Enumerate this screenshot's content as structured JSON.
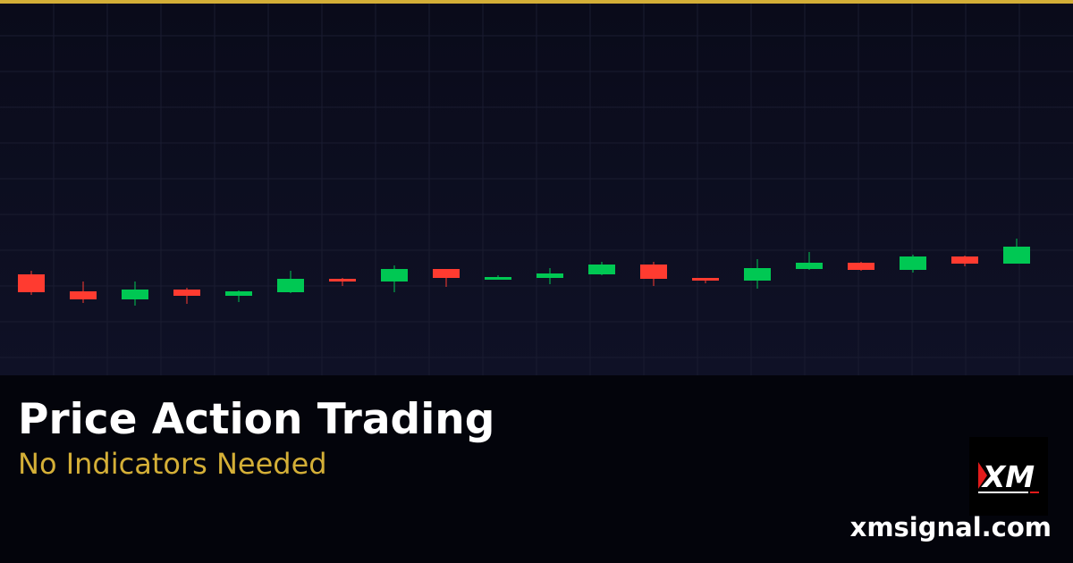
{
  "colors": {
    "accent": "#d4af37",
    "up": "#00c853",
    "down": "#ff3b30",
    "subtitle": "#d4af37"
  },
  "title": "Price Action Trading",
  "subtitle": "No Indicators Needed",
  "site": "xmsignal.com",
  "logo": {
    "text": "XM",
    "icon": "xm-logo"
  },
  "chart_data": {
    "type": "candlestick",
    "grid": true,
    "candles": [
      {
        "o": 11.3,
        "h": 11.7,
        "l": 9.0,
        "c": 9.3
      },
      {
        "o": 9.4,
        "h": 10.5,
        "l": 8.1,
        "c": 8.5
      },
      {
        "o": 8.5,
        "h": 10.5,
        "l": 7.8,
        "c": 9.6
      },
      {
        "o": 9.6,
        "h": 9.8,
        "l": 8.0,
        "c": 8.9
      },
      {
        "o": 8.9,
        "h": 9.5,
        "l": 8.2,
        "c": 9.4
      },
      {
        "o": 9.3,
        "h": 11.7,
        "l": 9.2,
        "c": 10.8
      },
      {
        "o": 10.8,
        "h": 10.9,
        "l": 10.0,
        "c": 10.5
      },
      {
        "o": 10.5,
        "h": 12.3,
        "l": 9.3,
        "c": 11.9
      },
      {
        "o": 11.9,
        "h": 11.9,
        "l": 9.9,
        "c": 10.9
      },
      {
        "o": 10.7,
        "h": 11.2,
        "l": 10.7,
        "c": 11.0
      },
      {
        "o": 10.9,
        "h": 12.0,
        "l": 10.2,
        "c": 11.4
      },
      {
        "o": 11.3,
        "h": 12.7,
        "l": 11.2,
        "c": 12.4
      },
      {
        "o": 12.4,
        "h": 12.7,
        "l": 10.0,
        "c": 10.8
      },
      {
        "o": 10.9,
        "h": 10.9,
        "l": 10.3,
        "c": 10.6
      },
      {
        "o": 10.6,
        "h": 13.0,
        "l": 9.7,
        "c": 12.0
      },
      {
        "o": 11.9,
        "h": 13.8,
        "l": 11.8,
        "c": 12.6
      },
      {
        "o": 12.6,
        "h": 12.7,
        "l": 11.7,
        "c": 11.8
      },
      {
        "o": 11.8,
        "h": 13.5,
        "l": 11.5,
        "c": 13.3
      },
      {
        "o": 13.3,
        "h": 13.4,
        "l": 12.2,
        "c": 12.5
      },
      {
        "o": 12.5,
        "h": 15.3,
        "l": 12.5,
        "c": 14.4
      }
    ]
  }
}
